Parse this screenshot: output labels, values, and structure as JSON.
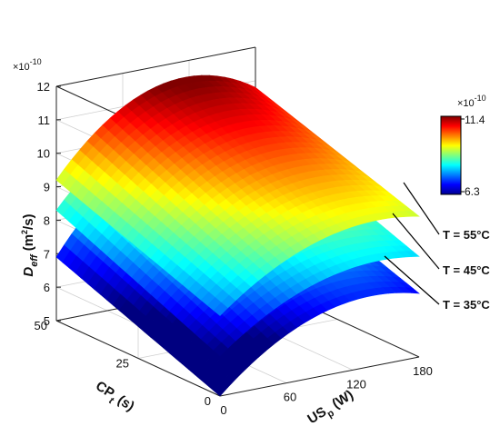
{
  "chart_data": {
    "type": "surface",
    "z_exponent": "×10",
    "z_exponent_power": "-10",
    "zlim": [
      5,
      12
    ],
    "z_ticks": [
      "5",
      "6",
      "7",
      "8",
      "9",
      "10",
      "11",
      "12"
    ],
    "xlim": [
      0,
      180
    ],
    "x_ticks": [
      "0",
      "60",
      "120",
      "180"
    ],
    "ylim": [
      0,
      50
    ],
    "y_ticks": [
      "0",
      "25",
      "50"
    ],
    "zlabel": {
      "main": "D",
      "sub": "eff",
      "unit": " (m",
      "unit_sup": "2",
      "unit_end": "/s)"
    },
    "xlabel": {
      "main": "US",
      "sub": "p",
      "unit": " (W)"
    },
    "ylabel": {
      "main": "CP",
      "sub": "t",
      "unit": " (s)"
    },
    "colorbar": {
      "exponent": "×10",
      "exponent_power": "-10",
      "max_label": "11.4",
      "min_label": "6.3",
      "range": [
        6.3,
        11.4
      ],
      "colormap": "jet"
    },
    "series": [
      {
        "name": "T = 35°C",
        "label": "T = 35°C",
        "temperature": 35,
        "corners": {
          "x0_y50": 6.9,
          "x0_y0": 5.0,
          "x180_y0": 6.9,
          "x180_y50": 8.6
        },
        "peak": 9.4
      },
      {
        "name": "T = 45°C",
        "label": "T = 45°C",
        "temperature": 45,
        "corners": {
          "x0_y50": 8.3,
          "x0_y0": 6.2,
          "x180_y0": 8.0,
          "x180_y50": 9.8
        },
        "peak": 10.4
      },
      {
        "name": "T = 55°C",
        "label": "T = 55°C",
        "temperature": 55,
        "corners": {
          "x0_y50": 9.2,
          "x0_y0": 7.4,
          "x180_y0": 9.2,
          "x180_y50": 10.8
        },
        "peak": 11.4
      }
    ],
    "grid": true
  }
}
